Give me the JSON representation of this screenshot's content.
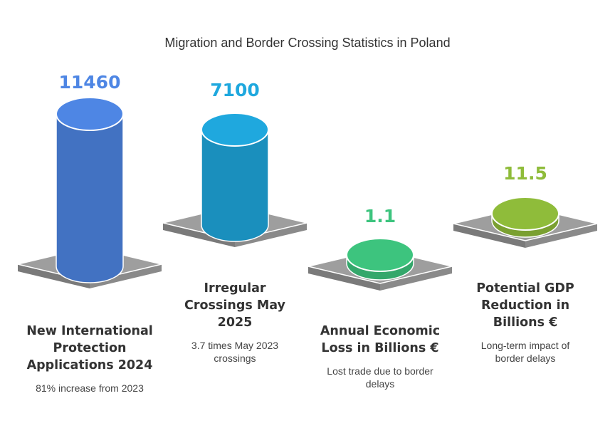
{
  "chart_data": {
    "type": "bar",
    "title": "Migration and Border Crossing Statistics in Poland",
    "categories": [
      "New International Protection Applications 2024",
      "Irregular Crossings May 2025",
      "Annual Economic Loss in Billions €",
      "Potential GDP Reduction in Billions €"
    ],
    "values": [
      11460,
      7100,
      1.1,
      11.5
    ],
    "value_labels": [
      "11460",
      "7100",
      "1.1",
      "11.5"
    ],
    "items": [
      {
        "value": "11460",
        "label_lines": [
          "New International",
          "Protection",
          "Applications 2024"
        ],
        "desc_lines": [
          "81% increase from 2023"
        ],
        "color": "#4e86e4"
      },
      {
        "value": "7100",
        "label_lines": [
          "Irregular",
          "Crossings May",
          "2025"
        ],
        "desc_lines": [
          "3.7 times May 2023",
          "crossings"
        ],
        "color": "#1fa8de"
      },
      {
        "value": "1.1",
        "label_lines": [
          "Annual Economic",
          "Loss in Billions €"
        ],
        "desc_lines": [
          "Lost trade due to border",
          "delays"
        ],
        "color": "#3dc47e"
      },
      {
        "value": "11.5",
        "label_lines": [
          "Potential GDP",
          "Reduction in",
          "Billions €"
        ],
        "desc_lines": [
          "Long-term impact of",
          "border delays"
        ],
        "color": "#8fbc3a"
      }
    ],
    "platform_color": "#9e9e9e"
  }
}
